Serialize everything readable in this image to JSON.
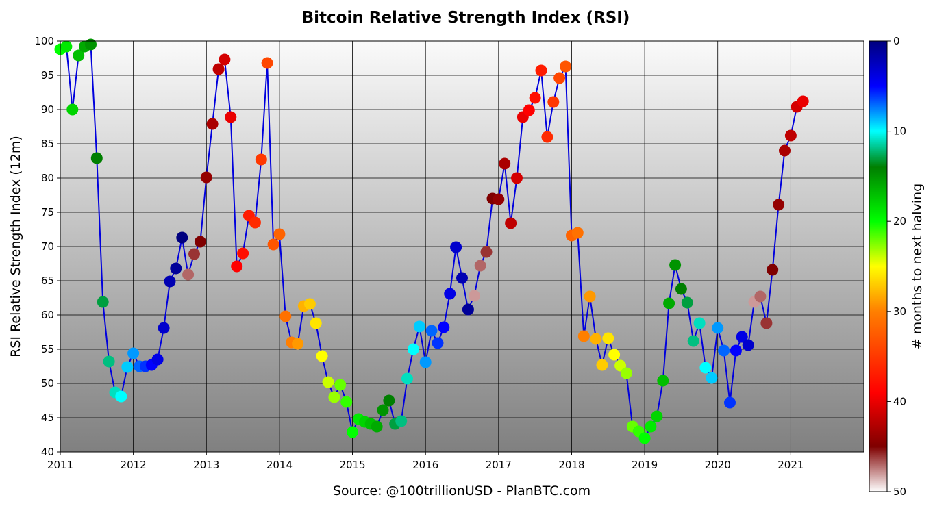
{
  "chart_data": {
    "type": "scatter",
    "title": "Bitcoin Relative Strength Index (RSI)",
    "ylabel": "RSI Relative Strength Index (12m)",
    "xlabel": "Source: @100trillionUSD  -  PlanBTC.com",
    "xlim": [
      2011.0,
      2022.0
    ],
    "ylim": [
      40,
      100
    ],
    "x_ticks": [
      "2011",
      "2012",
      "2013",
      "2014",
      "2015",
      "2016",
      "2017",
      "2018",
      "2019",
      "2020",
      "2021"
    ],
    "y_ticks": [
      "40",
      "45",
      "50",
      "55",
      "60",
      "65",
      "70",
      "75",
      "80",
      "85",
      "90",
      "95",
      "100"
    ],
    "grid": true,
    "colorbar": {
      "label": "# months to next halving",
      "range": [
        0,
        50
      ],
      "ticks": [
        "0",
        "10",
        "20",
        "30",
        "40",
        "50"
      ],
      "colormap": "jet-like"
    },
    "series": [
      {
        "name": "RSI (12m)",
        "line_color": "#0000dd",
        "x": [
          2011.0,
          2011.083,
          2011.167,
          2011.25,
          2011.333,
          2011.417,
          2011.5,
          2011.583,
          2011.667,
          2011.75,
          2011.833,
          2011.917,
          2012.0,
          2012.083,
          2012.167,
          2012.25,
          2012.333,
          2012.417,
          2012.5,
          2012.583,
          2012.667,
          2012.75,
          2012.833,
          2012.917,
          2013.0,
          2013.083,
          2013.167,
          2013.25,
          2013.333,
          2013.417,
          2013.5,
          2013.583,
          2013.667,
          2013.75,
          2013.833,
          2013.917,
          2014.0,
          2014.083,
          2014.167,
          2014.25,
          2014.333,
          2014.417,
          2014.5,
          2014.583,
          2014.667,
          2014.75,
          2014.833,
          2014.917,
          2015.0,
          2015.083,
          2015.167,
          2015.25,
          2015.333,
          2015.417,
          2015.5,
          2015.583,
          2015.667,
          2015.75,
          2015.833,
          2015.917,
          2016.0,
          2016.083,
          2016.167,
          2016.25,
          2016.333,
          2016.417,
          2016.5,
          2016.583,
          2016.667,
          2016.75,
          2016.833,
          2016.917,
          2017.0,
          2017.083,
          2017.167,
          2017.25,
          2017.333,
          2017.417,
          2017.5,
          2017.583,
          2017.667,
          2017.75,
          2017.833,
          2017.917,
          2018.0,
          2018.083,
          2018.167,
          2018.25,
          2018.333,
          2018.417,
          2018.5,
          2018.583,
          2018.667,
          2018.75,
          2018.833,
          2018.917,
          2019.0,
          2019.083,
          2019.167,
          2019.25,
          2019.333,
          2019.417,
          2019.5,
          2019.583,
          2019.667,
          2019.75,
          2019.833,
          2019.917,
          2020.0,
          2020.083,
          2020.167,
          2020.25,
          2020.333,
          2020.417,
          2020.5,
          2020.583,
          2020.667,
          2020.75,
          2020.833,
          2020.917,
          2021.0,
          2021.083,
          2021.167
        ],
        "y": [
          98.8,
          99.2,
          90.0,
          97.9,
          99.2,
          99.5,
          82.9,
          61.9,
          53.2,
          48.7,
          48.1,
          52.4,
          54.4,
          52.5,
          52.5,
          52.7,
          53.5,
          58.1,
          64.9,
          66.8,
          71.3,
          65.9,
          68.9,
          70.7,
          80.1,
          87.9,
          95.9,
          97.3,
          88.9,
          67.1,
          69.0,
          74.5,
          73.5,
          82.7,
          96.8,
          70.3,
          71.8,
          59.8,
          56.0,
          55.8,
          61.3,
          61.6,
          58.8,
          54.0,
          50.2,
          48.0,
          49.8,
          47.3,
          42.9,
          44.8,
          44.4,
          44.1,
          43.7,
          46.1,
          47.5,
          44.1,
          44.5,
          50.7,
          55.0,
          58.3,
          53.1,
          57.7,
          55.9,
          58.2,
          63.1,
          69.9,
          65.4,
          60.8,
          62.8,
          67.2,
          69.2,
          77.0,
          76.9,
          82.1,
          73.4,
          80.0,
          88.9,
          89.9,
          91.7,
          95.7,
          86.0,
          91.1,
          94.6,
          96.3,
          71.6,
          72.0,
          56.9,
          62.7,
          56.5,
          52.7,
          56.6,
          54.2,
          52.6,
          51.5,
          43.7,
          43.0,
          42.0,
          43.7,
          45.2,
          50.4,
          61.7,
          67.3,
          63.8,
          61.8,
          56.2,
          58.8,
          52.3,
          50.8,
          58.1,
          54.8,
          47.2,
          54.8,
          56.8,
          55.6,
          61.9,
          62.7,
          58.8,
          66.6,
          76.1,
          84.0,
          86.2,
          90.4,
          91.2
        ],
        "months_to_halving": [
          20,
          19,
          18,
          17,
          16,
          15,
          14,
          13,
          12,
          11,
          10,
          9,
          8,
          7,
          6,
          5,
          4,
          3,
          2,
          1,
          0,
          47,
          46,
          45,
          44,
          43,
          42,
          41,
          40,
          39,
          38,
          37,
          36,
          35,
          34,
          33,
          32,
          31,
          30,
          29,
          28,
          27,
          26,
          25,
          24,
          23,
          22,
          21,
          20,
          19,
          18,
          17,
          16,
          15,
          14,
          13,
          12,
          11,
          10,
          9,
          8,
          7,
          6,
          5,
          4,
          3,
          2,
          1,
          48,
          47,
          46,
          45,
          44,
          43,
          42,
          41,
          40,
          39,
          38,
          37,
          36,
          35,
          34,
          33,
          32,
          31,
          30,
          29,
          28,
          27,
          26,
          25,
          24,
          23,
          22,
          21,
          20,
          19,
          18,
          17,
          16,
          15,
          14,
          13,
          12,
          11,
          10,
          9,
          8,
          7,
          6,
          5,
          4,
          3,
          48,
          47,
          46,
          45,
          44,
          43,
          42,
          41,
          40
        ]
      }
    ]
  }
}
